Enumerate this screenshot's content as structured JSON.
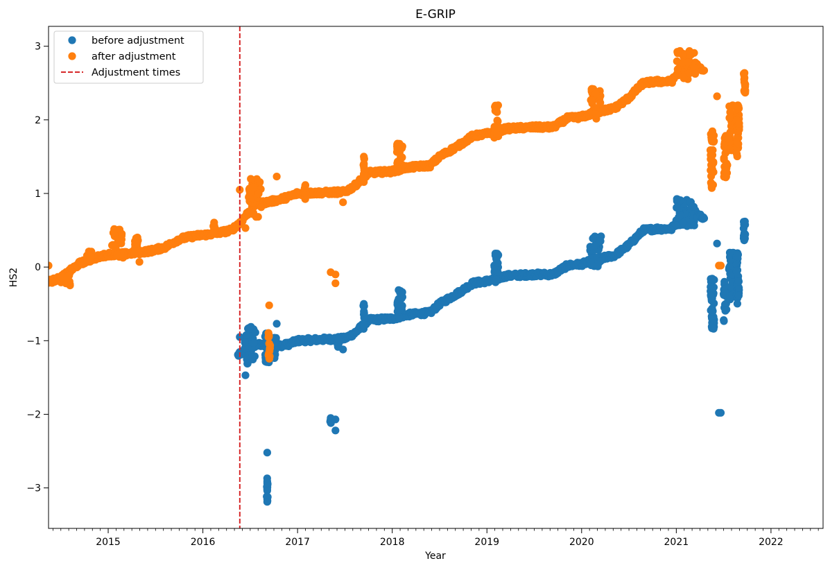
{
  "chart_data": {
    "type": "scatter",
    "title": "E-GRIP",
    "xlabel": "Year",
    "ylabel": "HS2",
    "xlim": [
      2014.37,
      2022.55
    ],
    "ylim": [
      -3.55,
      3.27
    ],
    "x_ticks": [
      2015,
      2016,
      2017,
      2018,
      2019,
      2020,
      2021,
      2022
    ],
    "y_ticks": [
      -3,
      -2,
      -1,
      0,
      1,
      2,
      3
    ],
    "y_tick_labels": [
      "−3",
      "−2",
      "−1",
      "0",
      "1",
      "2",
      "3"
    ],
    "grid": false,
    "legend_position": "top-left",
    "legend": [
      {
        "label": "before adjustment",
        "kind": "marker",
        "color": "#1f77b4"
      },
      {
        "label": "after adjustment",
        "kind": "marker",
        "color": "#ff7f0e"
      },
      {
        "label": "Adjustment times",
        "kind": "dashed-line",
        "color": "#d62728"
      }
    ],
    "adjustment_times": [
      2016.39
    ],
    "series": [
      {
        "name": "before adjustment",
        "color": "#1f77b4",
        "trend": [
          [
            2016.37,
            -1.2
          ],
          [
            2016.55,
            -1.05
          ],
          [
            2016.75,
            -1.08
          ],
          [
            2016.9,
            -1.05
          ],
          [
            2017.0,
            -1.0
          ],
          [
            2017.5,
            -0.97
          ],
          [
            2017.6,
            -0.9
          ],
          [
            2017.75,
            -0.72
          ],
          [
            2018.0,
            -0.7
          ],
          [
            2018.15,
            -0.65
          ],
          [
            2018.3,
            -0.63
          ],
          [
            2018.4,
            -0.62
          ],
          [
            2018.5,
            -0.5
          ],
          [
            2018.7,
            -0.35
          ],
          [
            2018.85,
            -0.22
          ],
          [
            2019.05,
            -0.18
          ],
          [
            2019.2,
            -0.12
          ],
          [
            2019.5,
            -0.1
          ],
          [
            2019.7,
            -0.1
          ],
          [
            2019.85,
            0.02
          ],
          [
            2020.0,
            0.04
          ],
          [
            2020.15,
            0.1
          ],
          [
            2020.35,
            0.16
          ],
          [
            2020.5,
            0.3
          ],
          [
            2020.65,
            0.5
          ],
          [
            2020.8,
            0.52
          ],
          [
            2020.95,
            0.52
          ],
          [
            2021.05,
            0.7
          ],
          [
            2021.2,
            0.75
          ],
          [
            2021.3,
            0.66
          ]
        ],
        "clusters": [
          {
            "x": 2016.5,
            "y_min": -1.35,
            "y_max": -0.8,
            "dx": 0.12
          },
          {
            "x": 2016.68,
            "y_min": -1.3,
            "y_max": -0.9,
            "dx": 0.05
          },
          {
            "x": 2016.75,
            "y_min": -1.25,
            "y_max": -0.95,
            "dx": 0.05
          },
          {
            "x": 2016.68,
            "y_min": -3.2,
            "y_max": -2.8,
            "dx": 0.01
          },
          {
            "x": 2017.35,
            "y_min": -2.12,
            "y_max": -2.05,
            "dx": 0.02
          },
          {
            "x": 2017.43,
            "y_min": -1.12,
            "y_max": -0.95,
            "dx": 0.02
          },
          {
            "x": 2017.7,
            "y_min": -0.85,
            "y_max": -0.5,
            "dx": 0.01
          },
          {
            "x": 2018.08,
            "y_min": -0.7,
            "y_max": -0.3,
            "dx": 0.06
          },
          {
            "x": 2019.1,
            "y_min": -0.25,
            "y_max": 0.2,
            "dx": 0.05
          },
          {
            "x": 2020.15,
            "y_min": 0.0,
            "y_max": 0.44,
            "dx": 0.12
          },
          {
            "x": 2021.1,
            "y_min": 0.55,
            "y_max": 0.95,
            "dx": 0.2
          },
          {
            "x": 2021.38,
            "y_min": -0.9,
            "y_max": -0.15,
            "dx": 0.04
          },
          {
            "x": 2021.52,
            "y_min": -0.8,
            "y_max": -0.2,
            "dx": 0.04
          },
          {
            "x": 2021.58,
            "y_min": -0.45,
            "y_max": 0.2,
            "dx": 0.05
          },
          {
            "x": 2021.65,
            "y_min": -0.5,
            "y_max": 0.2,
            "dx": 0.03
          },
          {
            "x": 2021.72,
            "y_min": 0.35,
            "y_max": 0.65,
            "dx": 0.02
          }
        ],
        "points": [
          [
            2016.68,
            -2.52
          ],
          [
            2016.78,
            -0.77
          ],
          [
            2016.45,
            -1.47
          ],
          [
            2017.35,
            -2.05
          ],
          [
            2017.4,
            -2.07
          ],
          [
            2017.4,
            -2.22
          ],
          [
            2017.48,
            -1.12
          ],
          [
            2017.7,
            -0.5
          ],
          [
            2021.43,
            0.32
          ],
          [
            2021.45,
            -1.98
          ],
          [
            2021.47,
            -1.98
          ],
          [
            2016.39,
            -0.95
          ]
        ]
      },
      {
        "name": "after adjustment",
        "color": "#ff7f0e",
        "trend": [
          [
            2014.37,
            -0.2
          ],
          [
            2014.5,
            -0.15
          ],
          [
            2014.6,
            -0.05
          ],
          [
            2014.7,
            0.05
          ],
          [
            2014.85,
            0.12
          ],
          [
            2015.0,
            0.17
          ],
          [
            2015.2,
            0.18
          ],
          [
            2015.45,
            0.22
          ],
          [
            2015.6,
            0.27
          ],
          [
            2015.75,
            0.38
          ],
          [
            2015.9,
            0.42
          ],
          [
            2016.1,
            0.45
          ],
          [
            2016.3,
            0.5
          ],
          [
            2016.39,
            0.6
          ],
          [
            2016.55,
            0.85
          ],
          [
            2016.75,
            0.9
          ],
          [
            2016.9,
            0.95
          ],
          [
            2017.0,
            1.0
          ],
          [
            2017.5,
            1.02
          ],
          [
            2017.6,
            1.1
          ],
          [
            2017.75,
            1.28
          ],
          [
            2018.0,
            1.3
          ],
          [
            2018.15,
            1.35
          ],
          [
            2018.3,
            1.37
          ],
          [
            2018.4,
            1.38
          ],
          [
            2018.5,
            1.5
          ],
          [
            2018.7,
            1.65
          ],
          [
            2018.85,
            1.78
          ],
          [
            2019.05,
            1.82
          ],
          [
            2019.2,
            1.88
          ],
          [
            2019.5,
            1.9
          ],
          [
            2019.7,
            1.9
          ],
          [
            2019.85,
            2.02
          ],
          [
            2020.0,
            2.04
          ],
          [
            2020.15,
            2.1
          ],
          [
            2020.35,
            2.16
          ],
          [
            2020.5,
            2.3
          ],
          [
            2020.65,
            2.5
          ],
          [
            2020.8,
            2.52
          ],
          [
            2020.95,
            2.52
          ],
          [
            2021.05,
            2.7
          ],
          [
            2021.2,
            2.75
          ],
          [
            2021.3,
            2.66
          ]
        ],
        "clusters": [
          {
            "x": 2014.55,
            "y_min": -0.25,
            "y_max": -0.1,
            "dx": 0.1
          },
          {
            "x": 2014.8,
            "y_min": 0.05,
            "y_max": 0.22,
            "dx": 0.05
          },
          {
            "x": 2015.1,
            "y_min": 0.12,
            "y_max": 0.52,
            "dx": 0.12
          },
          {
            "x": 2015.3,
            "y_min": 0.15,
            "y_max": 0.42,
            "dx": 0.05
          },
          {
            "x": 2016.12,
            "y_min": 0.45,
            "y_max": 0.7,
            "dx": 0.02
          },
          {
            "x": 2016.55,
            "y_min": 0.68,
            "y_max": 1.2,
            "dx": 0.14
          },
          {
            "x": 2016.7,
            "y_min": -1.25,
            "y_max": -0.85,
            "dx": 0.02
          },
          {
            "x": 2017.08,
            "y_min": 0.92,
            "y_max": 1.12,
            "dx": 0.03
          },
          {
            "x": 2017.7,
            "y_min": 1.15,
            "y_max": 1.5,
            "dx": 0.01
          },
          {
            "x": 2018.08,
            "y_min": 1.3,
            "y_max": 1.7,
            "dx": 0.06
          },
          {
            "x": 2019.1,
            "y_min": 1.75,
            "y_max": 2.2,
            "dx": 0.05
          },
          {
            "x": 2020.15,
            "y_min": 2.0,
            "y_max": 2.44,
            "dx": 0.12
          },
          {
            "x": 2021.1,
            "y_min": 2.55,
            "y_max": 2.95,
            "dx": 0.2
          },
          {
            "x": 2021.38,
            "y_min": 1.05,
            "y_max": 1.85,
            "dx": 0.04
          },
          {
            "x": 2021.52,
            "y_min": 1.2,
            "y_max": 1.8,
            "dx": 0.04
          },
          {
            "x": 2021.58,
            "y_min": 1.55,
            "y_max": 2.2,
            "dx": 0.05
          },
          {
            "x": 2021.65,
            "y_min": 1.5,
            "y_max": 2.2,
            "dx": 0.03
          },
          {
            "x": 2021.72,
            "y_min": 2.35,
            "y_max": 2.65,
            "dx": 0.02
          }
        ],
        "points": [
          [
            2014.37,
            0.02
          ],
          [
            2015.33,
            0.07
          ],
          [
            2016.45,
            0.53
          ],
          [
            2016.7,
            -0.52
          ],
          [
            2016.78,
            1.23
          ],
          [
            2017.35,
            -0.07
          ],
          [
            2017.4,
            -0.1
          ],
          [
            2017.4,
            -0.22
          ],
          [
            2017.48,
            0.88
          ],
          [
            2017.7,
            1.5
          ],
          [
            2021.43,
            2.32
          ],
          [
            2021.47,
            0.02
          ],
          [
            2021.45,
            0.02
          ],
          [
            2016.39,
            1.05
          ]
        ]
      }
    ]
  }
}
